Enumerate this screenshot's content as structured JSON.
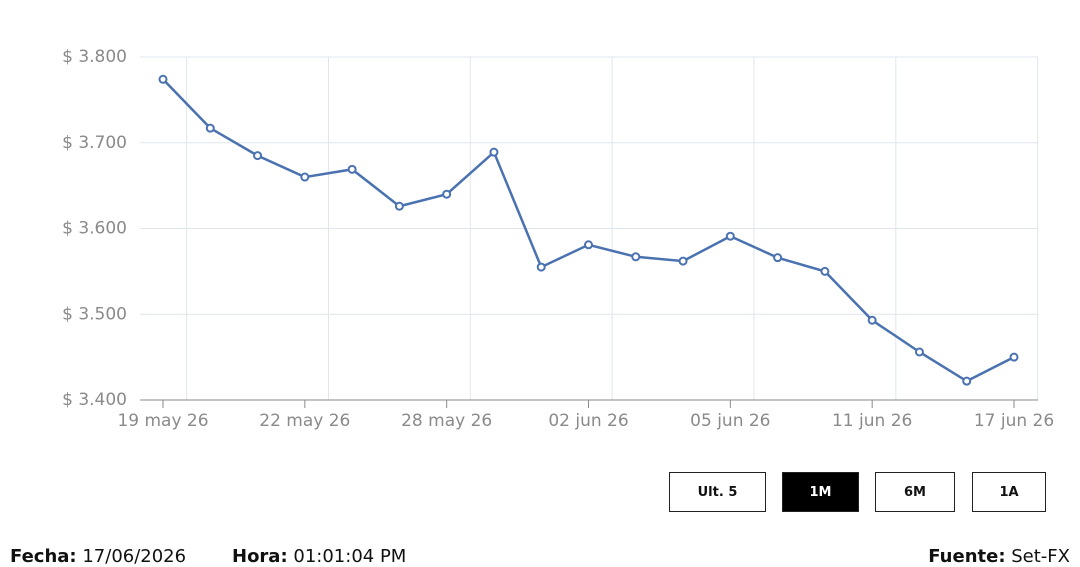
{
  "chart_data": {
    "type": "line",
    "categories": [
      "19 may 26",
      null,
      null,
      "22 may 26",
      null,
      null,
      "28 may 26",
      null,
      null,
      "02 jun 26",
      null,
      null,
      "05 jun 26",
      null,
      null,
      "11 jun 26",
      null,
      null,
      "17 jun 26"
    ],
    "values": [
      3.774,
      3.717,
      3.685,
      3.66,
      3.669,
      3.626,
      3.64,
      3.689,
      3.555,
      3.581,
      3.567,
      3.562,
      3.591,
      3.566,
      3.55,
      3.493,
      3.456,
      3.422,
      3.45
    ],
    "color": "#4a72b0",
    "ylim": [
      3.4,
      3.8
    ],
    "yticks": [
      {
        "value": 3.4,
        "label": "$ 3.400"
      },
      {
        "value": 3.5,
        "label": "$ 3.500"
      },
      {
        "value": 3.6,
        "label": "$ 3.600"
      },
      {
        "value": 3.7,
        "label": "$ 3.700"
      },
      {
        "value": 3.8,
        "label": "$ 3.800"
      }
    ],
    "grid": true
  },
  "buttons": [
    "Ult. 5",
    "1M",
    "6M",
    "1A"
  ],
  "active_button": 1,
  "footer": {
    "fecha_label": "Fecha:",
    "fecha": "17/06/2026",
    "hora_label": "Hora:",
    "hora": "01:01:04 PM",
    "fuente_label": "Fuente:",
    "fuente": "Set-FX"
  }
}
